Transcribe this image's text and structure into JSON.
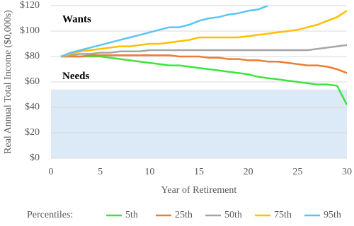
{
  "chart_data": {
    "type": "line",
    "x_label": "Year of Retirement",
    "y_label": "Real Annual Total Income ($0,000s)",
    "legend_title": "Percentiles:",
    "annotations": [
      "Wants"
    ],
    "regions": [
      {
        "label": "Needs",
        "from": 0,
        "to": 54,
        "color": "#dceaf8"
      }
    ],
    "x": [
      1,
      2,
      3,
      4,
      5,
      6,
      7,
      8,
      9,
      10,
      11,
      12,
      13,
      14,
      15,
      16,
      17,
      18,
      19,
      20,
      21,
      22,
      23,
      24,
      25,
      26,
      27,
      28,
      29,
      30
    ],
    "series": [
      {
        "name": "5th",
        "color": "#3be63b",
        "values": [
          80,
          80,
          80,
          80,
          80,
          79,
          78,
          77,
          76,
          75,
          74,
          73,
          73,
          72,
          71,
          70,
          69,
          68,
          67,
          66,
          64,
          63,
          62,
          61,
          60,
          59,
          58,
          58,
          57,
          42
        ]
      },
      {
        "name": "25th",
        "color": "#ed7d31",
        "values": [
          80,
          80,
          80,
          81,
          81,
          81,
          81,
          81,
          81,
          81,
          81,
          81,
          80,
          80,
          80,
          79,
          79,
          78,
          78,
          77,
          77,
          76,
          76,
          75,
          74,
          73,
          73,
          72,
          70,
          67
        ]
      },
      {
        "name": "50th",
        "color": "#a5a5a5",
        "values": [
          80,
          81,
          82,
          82,
          83,
          83,
          84,
          84,
          84,
          85,
          85,
          85,
          85,
          85,
          85,
          85,
          85,
          85,
          85,
          85,
          85,
          85,
          85,
          85,
          85,
          85,
          86,
          87,
          88,
          89
        ]
      },
      {
        "name": "75th",
        "color": "#ffc000",
        "values": [
          80,
          82,
          84,
          85,
          86,
          87,
          88,
          88,
          89,
          90,
          90,
          91,
          92,
          93,
          95,
          95,
          95,
          95,
          95,
          96,
          97,
          98,
          99,
          100,
          101,
          103,
          105,
          108,
          111,
          116
        ]
      },
      {
        "name": "95th",
        "color": "#5bc5f2",
        "values": [
          80,
          83,
          85,
          87,
          89,
          91,
          93,
          95,
          97,
          99,
          101,
          103,
          103,
          105,
          108,
          110,
          111,
          113,
          114,
          116,
          117,
          120,
          null,
          null,
          null,
          null,
          null,
          null,
          null,
          null
        ]
      }
    ],
    "xlim": [
      0,
      30
    ],
    "xticks": [
      0,
      5,
      10,
      15,
      20,
      25,
      30
    ],
    "ylim": [
      0,
      120
    ],
    "yticks": [
      {
        "value": 0,
        "label": "$0"
      },
      {
        "value": 20,
        "label": "$20"
      },
      {
        "value": 40,
        "label": "$40"
      },
      {
        "value": 60,
        "label": "$60"
      },
      {
        "value": 80,
        "label": "$80"
      },
      {
        "value": 100,
        "label": "$100"
      },
      {
        "value": 120,
        "label": "$120"
      }
    ],
    "grid": true,
    "legend": "bottom"
  }
}
